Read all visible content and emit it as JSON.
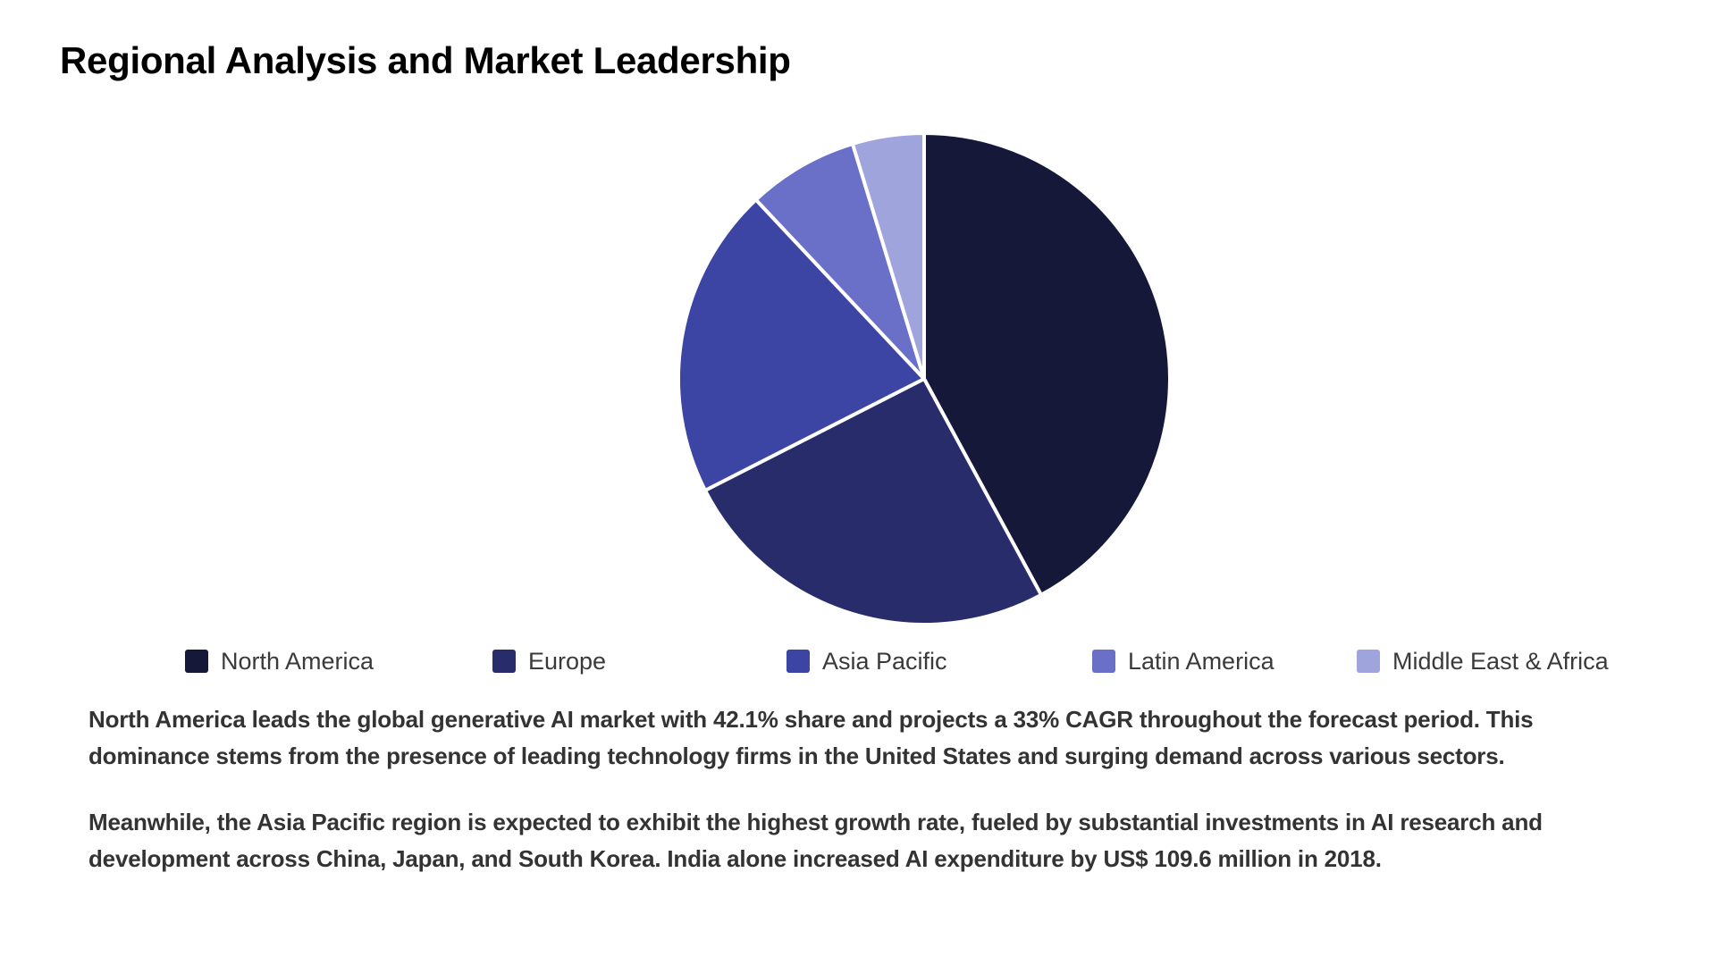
{
  "page": {
    "title": "Regional Analysis and Market Leadership",
    "paragraphs": [
      "North America leads the global generative AI market with 42.1% share and projects a 33% CAGR throughout the forecast period. This dominance stems from the presence of leading technology firms in the United States and surging demand across various sectors.",
      "Meanwhile, the Asia Pacific region is expected to exhibit the highest growth rate, fueled by substantial investments in AI research and development across China, Japan, and South Korea. India alone increased AI expenditure by US$ 109.6 million in 2018."
    ]
  },
  "chart_data": {
    "type": "pie",
    "title": "",
    "categories": [
      "North America",
      "Europe",
      "Asia Pacific",
      "Latin America",
      "Middle East & Africa"
    ],
    "values": [
      42.1,
      25.4,
      20.5,
      7.3,
      4.7
    ],
    "colors": [
      "#16183a",
      "#282c6b",
      "#3c44a4",
      "#6a70c8",
      "#a0a4dc"
    ],
    "start_angle_deg": 0,
    "direction": "clockwise",
    "slice_border_color": "#ffffff",
    "legend": {
      "position": "bottom",
      "labels": [
        "North America",
        "Europe",
        "Asia Pacific",
        "Latin America",
        "Middle East & Africa"
      ]
    }
  }
}
